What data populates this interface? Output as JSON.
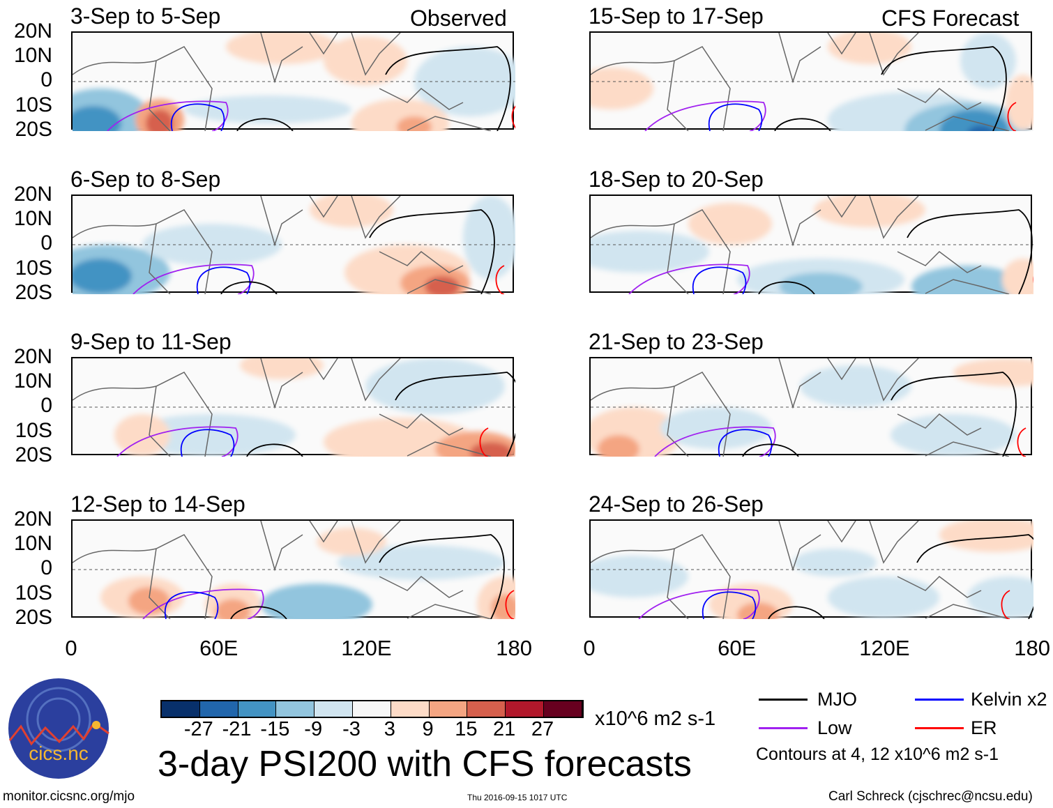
{
  "figure": {
    "title": "3-day PSI200 with CFS forecasts",
    "observed_label": "Observed",
    "forecast_label": "CFS Forecast",
    "left_panels": [
      "3-Sep to 5-Sep",
      "6-Sep to 8-Sep",
      "9-Sep to 11-Sep",
      "12-Sep to 14-Sep"
    ],
    "right_panels": [
      "15-Sep to 17-Sep",
      "18-Sep to 20-Sep",
      "21-Sep to 23-Sep",
      "24-Sep to 26-Sep"
    ],
    "y_ticks": [
      "20N",
      "10N",
      "0",
      "10S",
      "20S"
    ],
    "x_ticks": [
      "0",
      "60E",
      "120E",
      "180"
    ]
  },
  "colorbar": {
    "labels": [
      "-27",
      "-21",
      "-15",
      "-9",
      "-3",
      "3",
      "9",
      "15",
      "21",
      "27"
    ],
    "colors": [
      "#08306b",
      "#2166ac",
      "#4393c3",
      "#92c5de",
      "#d1e5f0",
      "#f7f7f7",
      "#fddbc7",
      "#f4a582",
      "#d6604d",
      "#b2182b",
      "#67001f"
    ],
    "units": "x10^6 m2 s-1"
  },
  "legend": {
    "items": [
      {
        "label": "MJO",
        "color": "#000000"
      },
      {
        "label": "Kelvin x2",
        "color": "#0000ff"
      },
      {
        "label": "Low",
        "color": "#a020f0"
      },
      {
        "label": "ER",
        "color": "#ff0000"
      }
    ],
    "contours_note": "Contours at 4, 12 x10^6 m2 s-1"
  },
  "footer": {
    "url": "monitor.cicsnc.org/mjo",
    "timestamp": "Thu 2016-09-15 1017 UTC",
    "author": "Carl Schreck (cjschrec@ncsu.edu)"
  },
  "logo": {
    "text": "cics.nc",
    "ring_text": "Cooperative Institute for Climate and Satellites"
  }
}
